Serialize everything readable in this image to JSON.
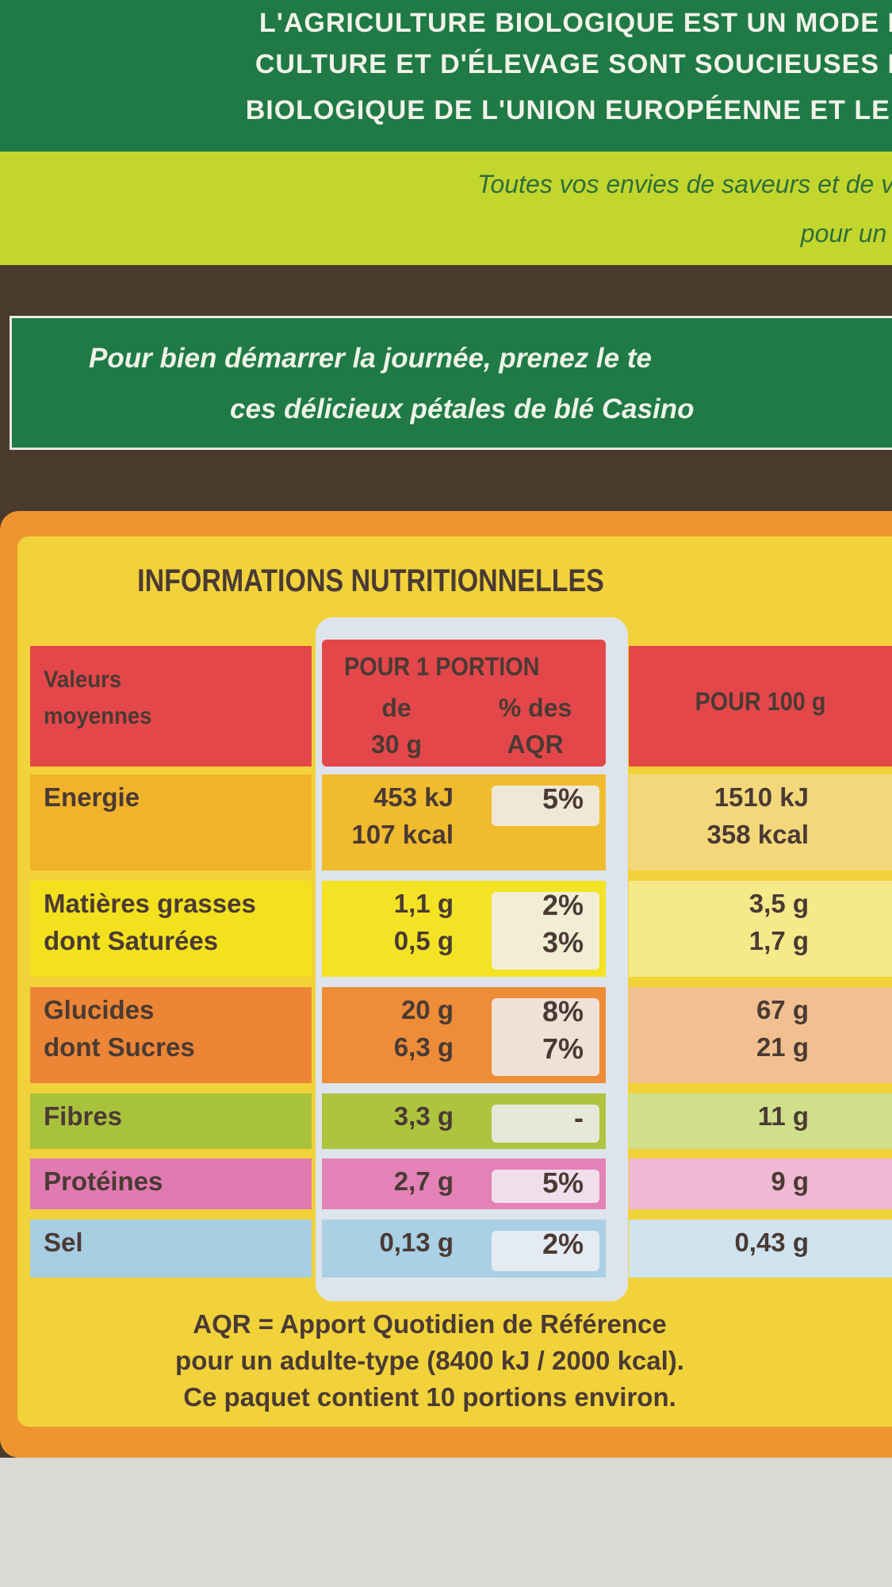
{
  "header": {
    "lines": [
      "L'AGRICULTURE BIOLOGIQUE EST UN MODE D",
      "CULTURE ET D'ÉLEVAGE SONT SOUCIEUSES D",
      "BIOLOGIQUE DE L'UNION EUROPÉENNE ET LE L"
    ]
  },
  "tagline": {
    "lines": [
      "Toutes vos envies de saveurs et de va",
      "pour un p"
    ]
  },
  "banner": {
    "lines": [
      "Pour bien démarrer la journée, prenez le te",
      "ces délicieux pétales de blé Casino"
    ]
  },
  "table": {
    "title": "INFORMATIONS NUTRITIONNELLES",
    "head": {
      "label": [
        "Valeurs",
        "moyennes"
      ],
      "portion": "POUR 1 PORTION",
      "portion_sub": [
        "de",
        "30 g"
      ],
      "aqr_sub": [
        "% des",
        "AQR"
      ],
      "per100": "POUR 100 g"
    },
    "rows": [
      {
        "labels": [
          "Energie"
        ],
        "portion": [
          "453 kJ",
          "107 kcal"
        ],
        "aqr": [
          "5%"
        ],
        "per100": [
          "1510 kJ",
          "358 kcal"
        ]
      },
      {
        "labels": [
          "Matières grasses",
          "dont Saturées"
        ],
        "portion": [
          "1,1 g",
          "0,5 g"
        ],
        "aqr": [
          "2%",
          "3%"
        ],
        "per100": [
          "3,5 g",
          "1,7 g"
        ]
      },
      {
        "labels": [
          "Glucides",
          "dont Sucres"
        ],
        "portion": [
          "20 g",
          "6,3 g"
        ],
        "aqr": [
          "8%",
          "7%"
        ],
        "per100": [
          "67 g",
          "21 g"
        ]
      },
      {
        "labels": [
          "Fibres"
        ],
        "portion": [
          "3,3 g"
        ],
        "aqr": [
          "-"
        ],
        "per100": [
          "11 g"
        ]
      },
      {
        "labels": [
          "Protéines"
        ],
        "portion": [
          "2,7 g"
        ],
        "aqr": [
          "5%"
        ],
        "per100": [
          "9 g"
        ]
      },
      {
        "labels": [
          "Sel"
        ],
        "portion": [
          "0,13 g"
        ],
        "aqr": [
          "2%"
        ],
        "per100": [
          "0,43 g"
        ]
      }
    ],
    "footer": [
      "AQR = Apport Quotidien de Référence",
      "pour un adulte-type (8400 kJ / 2000 kcal).",
      "Ce paquet contient 10 portions environ."
    ]
  }
}
